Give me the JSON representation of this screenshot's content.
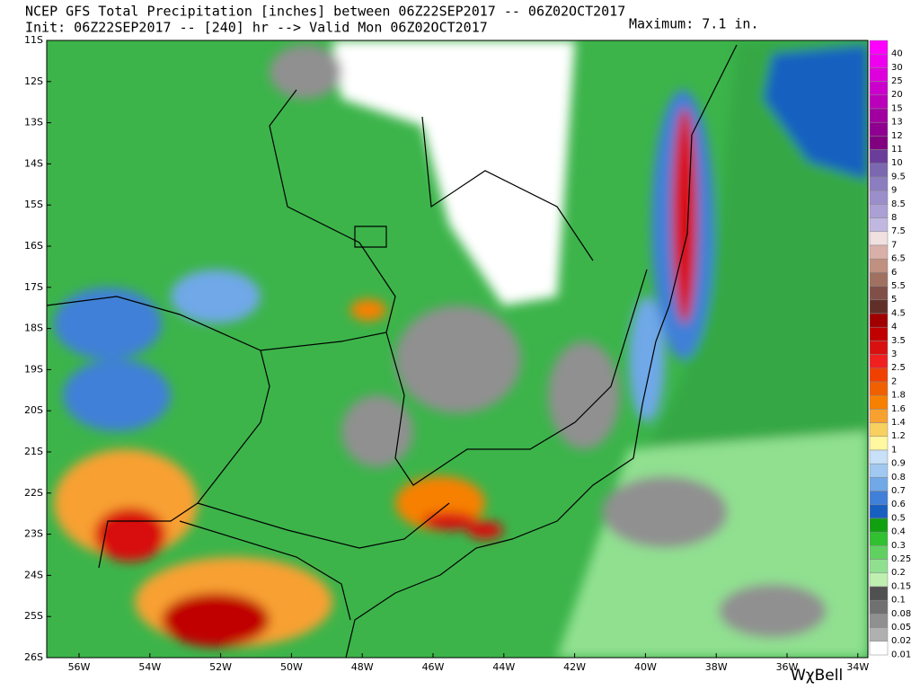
{
  "header": {
    "title": "NCEP GFS Total Precipitation [inches] between 06Z22SEP2017 -- 06Z02OCT2017",
    "init": "Init: 06Z22SEP2017 -- [240] hr --> Valid Mon 06Z02OCT2017",
    "maximum": "Maximum: 7.1 in."
  },
  "map": {
    "lat_labels": [
      "11S",
      "12S",
      "13S",
      "14S",
      "15S",
      "16S",
      "17S",
      "18S",
      "19S",
      "20S",
      "21S",
      "22S",
      "23S",
      "24S",
      "25S",
      "26S"
    ],
    "lon_labels": [
      "56W",
      "54W",
      "52W",
      "50W",
      "48W",
      "46W",
      "44W",
      "42W",
      "40W",
      "38W",
      "36W",
      "34W"
    ]
  },
  "colorbar": {
    "levels": [
      40,
      30,
      25,
      20,
      15,
      13,
      12,
      11,
      10,
      9.5,
      9,
      8.5,
      8,
      7.5,
      7,
      6.5,
      6,
      5.5,
      5,
      4.5,
      4,
      3.5,
      3,
      2.5,
      2,
      1.8,
      1.6,
      1.4,
      1.2,
      1,
      0.9,
      0.8,
      0.7,
      0.6,
      0.5,
      0.4,
      0.3,
      0.25,
      0.2,
      0.15,
      0.1,
      0.08,
      0.05,
      0.02,
      0.01
    ],
    "colors": [
      "#ff00ff",
      "#ee00ee",
      "#dd00dd",
      "#cc00cc",
      "#bb00bb",
      "#a000a0",
      "#900090",
      "#800080",
      "#6a3d9a",
      "#7b68b0",
      "#8a7ec0",
      "#9a8ecb",
      "#aaa0d5",
      "#c0b8e0",
      "#f0e0e0",
      "#d8b0a8",
      "#c09080",
      "#a07060",
      "#805048",
      "#603028",
      "#a00000",
      "#c00000",
      "#d81010",
      "#f02020",
      "#f04000",
      "#f06000",
      "#f88000",
      "#f8a030",
      "#f8d060",
      "#fff8a0",
      "#c8e0f8",
      "#a0c8f0",
      "#70a8e8",
      "#4080d8",
      "#1860c0",
      "#10a010",
      "#30c030",
      "#60d060",
      "#90e090",
      "#c0f0b0",
      "#505050",
      "#707070",
      "#909090",
      "#b0b0b0",
      "#ffffff"
    ]
  },
  "brand": "WχBell"
}
